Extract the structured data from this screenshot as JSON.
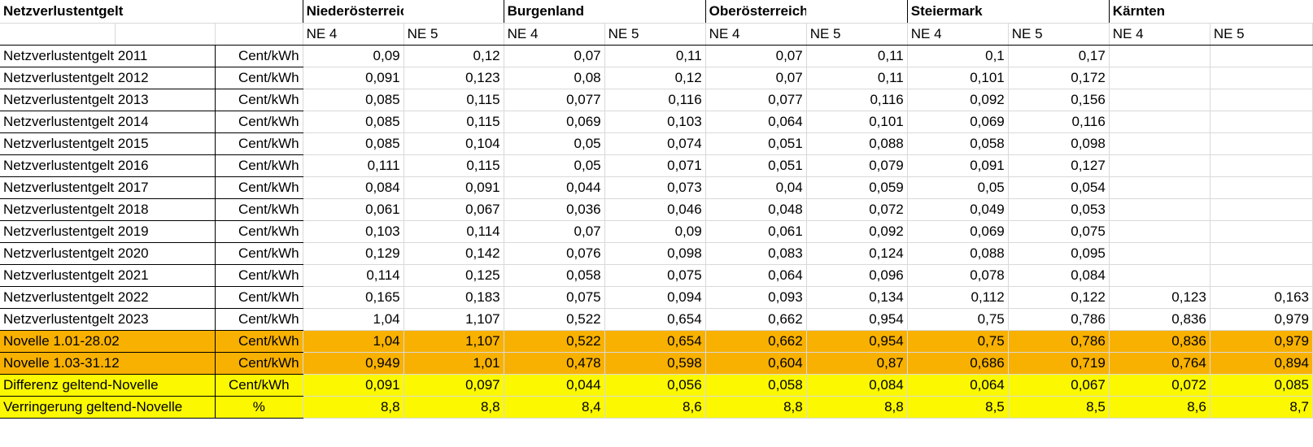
{
  "header": {
    "title": "Netzverlustentgelt",
    "regions": [
      "Niederösterreich",
      "Burgenland",
      "Oberösterreich",
      "Steiermark",
      "Kärnten"
    ],
    "levels": [
      "NE 4",
      "NE 5"
    ]
  },
  "rows": [
    {
      "label": "Netzverlustentgelt 2011",
      "unit": "Cent/kWh",
      "values": [
        "0,09",
        "0,12",
        "0,07",
        "0,11",
        "0,07",
        "0,11",
        "0,1",
        "0,17",
        "",
        ""
      ]
    },
    {
      "label": "Netzverlustentgelt 2012",
      "unit": "Cent/kWh",
      "values": [
        "0,091",
        "0,123",
        "0,08",
        "0,12",
        "0,07",
        "0,11",
        "0,101",
        "0,172",
        "",
        ""
      ]
    },
    {
      "label": "Netzverlustentgelt 2013",
      "unit": "Cent/kWh",
      "values": [
        "0,085",
        "0,115",
        "0,077",
        "0,116",
        "0,077",
        "0,116",
        "0,092",
        "0,156",
        "",
        ""
      ]
    },
    {
      "label": "Netzverlustentgelt 2014",
      "unit": "Cent/kWh",
      "values": [
        "0,085",
        "0,115",
        "0,069",
        "0,103",
        "0,064",
        "0,101",
        "0,069",
        "0,116",
        "",
        ""
      ]
    },
    {
      "label": "Netzverlustentgelt 2015",
      "unit": "Cent/kWh",
      "values": [
        "0,085",
        "0,104",
        "0,05",
        "0,074",
        "0,051",
        "0,088",
        "0,058",
        "0,098",
        "",
        ""
      ]
    },
    {
      "label": "Netzverlustentgelt 2016",
      "unit": "Cent/kWh",
      "values": [
        "0,111",
        "0,115",
        "0,05",
        "0,071",
        "0,051",
        "0,079",
        "0,091",
        "0,127",
        "",
        ""
      ]
    },
    {
      "label": "Netzverlustentgelt 2017",
      "unit": "Cent/kWh",
      "values": [
        "0,084",
        "0,091",
        "0,044",
        "0,073",
        "0,04",
        "0,059",
        "0,05",
        "0,054",
        "",
        ""
      ]
    },
    {
      "label": "Netzverlustentgelt 2018",
      "unit": "Cent/kWh",
      "values": [
        "0,061",
        "0,067",
        "0,036",
        "0,046",
        "0,048",
        "0,072",
        "0,049",
        "0,053",
        "",
        ""
      ]
    },
    {
      "label": "Netzverlustentgelt 2019",
      "unit": "Cent/kWh",
      "values": [
        "0,103",
        "0,114",
        "0,07",
        "0,09",
        "0,061",
        "0,092",
        "0,069",
        "0,075",
        "",
        ""
      ]
    },
    {
      "label": "Netzverlustentgelt 2020",
      "unit": "Cent/kWh",
      "values": [
        "0,129",
        "0,142",
        "0,076",
        "0,098",
        "0,083",
        "0,124",
        "0,088",
        "0,095",
        "",
        ""
      ]
    },
    {
      "label": "Netzverlustentgelt 2021",
      "unit": "Cent/kWh",
      "values": [
        "0,114",
        "0,125",
        "0,058",
        "0,075",
        "0,064",
        "0,096",
        "0,078",
        "0,084",
        "",
        ""
      ]
    },
    {
      "label": "Netzverlustentgelt 2022",
      "unit": "Cent/kWh",
      "values": [
        "0,165",
        "0,183",
        "0,075",
        "0,094",
        "0,093",
        "0,134",
        "0,112",
        "0,122",
        "0,123",
        "0,163"
      ]
    },
    {
      "label": "Netzverlustentgelt 2023",
      "unit": "Cent/kWh",
      "values": [
        "1,04",
        "1,107",
        "0,522",
        "0,654",
        "0,662",
        "0,954",
        "0,75",
        "0,786",
        "0,836",
        "0,979"
      ]
    }
  ],
  "orange_rows": [
    {
      "label": "Novelle 1.01-28.02",
      "unit": "Cent/kWh",
      "values": [
        "1,04",
        "1,107",
        "0,522",
        "0,654",
        "0,662",
        "0,954",
        "0,75",
        "0,786",
        "0,836",
        "0,979"
      ]
    },
    {
      "label": "Novelle 1.03-31.12",
      "unit": "Cent/kWh",
      "values": [
        "0,949",
        "1,01",
        "0,478",
        "0,598",
        "0,604",
        "0,87",
        "0,686",
        "0,719",
        "0,764",
        "0,894"
      ]
    }
  ],
  "yellow_rows": [
    {
      "label": "Differenz geltend-Novelle",
      "unit": "Cent/kWh",
      "values": [
        "0,091",
        "0,097",
        "0,044",
        "0,056",
        "0,058",
        "0,084",
        "0,064",
        "0,067",
        "0,072",
        "0,085"
      ]
    },
    {
      "label": "Verringerung geltend-Novelle",
      "unit": "%",
      "values": [
        "8,8",
        "8,8",
        "8,4",
        "8,6",
        "8,8",
        "8,8",
        "8,5",
        "8,5",
        "8,6",
        "8,7"
      ]
    }
  ],
  "colors": {
    "orange": "#f8b100",
    "yellow": "#fbf800",
    "border": "#000000",
    "gridline": "#d9d9d9"
  }
}
